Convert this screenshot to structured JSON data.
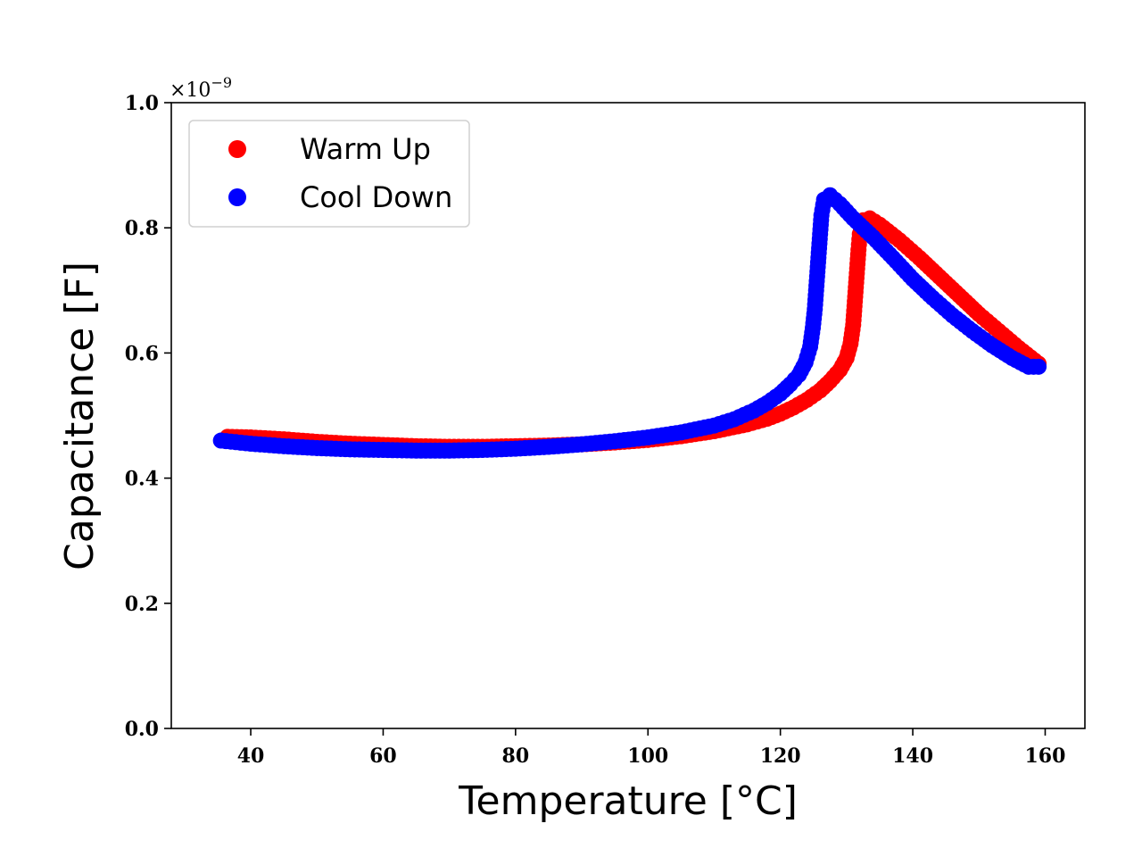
{
  "chart_data": {
    "type": "scatter",
    "title": "",
    "xlabel": "Temperature [°C]",
    "ylabel": "Capacitance [F]",
    "xlim": [
      28,
      166
    ],
    "ylim": [
      0.0,
      1.0
    ],
    "y_offset_label": {
      "base": "×10",
      "exponent": "−9"
    },
    "x_ticks": [
      40,
      60,
      80,
      100,
      120,
      140,
      160
    ],
    "y_ticks": [
      0.0,
      0.2,
      0.4,
      0.6,
      0.8,
      1.0
    ],
    "x_tick_labels": [
      "40",
      "60",
      "80",
      "100",
      "120",
      "140",
      "160"
    ],
    "y_tick_labels": [
      "0.0",
      "0.2",
      "0.4",
      "0.6",
      "0.8",
      "1.0"
    ],
    "grid": false,
    "legend_position": "top-left",
    "series": [
      {
        "name": "Warm Up",
        "color": "#ff0000",
        "points": [
          [
            36.5,
            0.466
          ],
          [
            40,
            0.465
          ],
          [
            45,
            0.462
          ],
          [
            50,
            0.458
          ],
          [
            55,
            0.455
          ],
          [
            60,
            0.453
          ],
          [
            65,
            0.451
          ],
          [
            70,
            0.45
          ],
          [
            75,
            0.45
          ],
          [
            80,
            0.451
          ],
          [
            85,
            0.452
          ],
          [
            90,
            0.454
          ],
          [
            95,
            0.457
          ],
          [
            100,
            0.461
          ],
          [
            105,
            0.467
          ],
          [
            110,
            0.475
          ],
          [
            115,
            0.486
          ],
          [
            118,
            0.495
          ],
          [
            120,
            0.503
          ],
          [
            122,
            0.513
          ],
          [
            124,
            0.525
          ],
          [
            126,
            0.54
          ],
          [
            127.5,
            0.555
          ],
          [
            129,
            0.573
          ],
          [
            130,
            0.592
          ],
          [
            130.6,
            0.615
          ],
          [
            131,
            0.645
          ],
          [
            131.2,
            0.675
          ],
          [
            131.4,
            0.705
          ],
          [
            131.6,
            0.735
          ],
          [
            131.8,
            0.765
          ],
          [
            132,
            0.79
          ],
          [
            132.5,
            0.812
          ],
          [
            133.5,
            0.815
          ],
          [
            135,
            0.805
          ],
          [
            138,
            0.78
          ],
          [
            141,
            0.752
          ],
          [
            144,
            0.722
          ],
          [
            147,
            0.692
          ],
          [
            150,
            0.662
          ],
          [
            153,
            0.635
          ],
          [
            156,
            0.608
          ],
          [
            159,
            0.583
          ]
        ]
      },
      {
        "name": "Cool Down",
        "color": "#0000ff",
        "points": [
          [
            35.5,
            0.46
          ],
          [
            40,
            0.455
          ],
          [
            45,
            0.451
          ],
          [
            50,
            0.448
          ],
          [
            55,
            0.446
          ],
          [
            60,
            0.445
          ],
          [
            65,
            0.444
          ],
          [
            70,
            0.444
          ],
          [
            75,
            0.445
          ],
          [
            80,
            0.447
          ],
          [
            85,
            0.45
          ],
          [
            90,
            0.454
          ],
          [
            95,
            0.459
          ],
          [
            100,
            0.465
          ],
          [
            105,
            0.473
          ],
          [
            110,
            0.484
          ],
          [
            113,
            0.494
          ],
          [
            116,
            0.508
          ],
          [
            118,
            0.52
          ],
          [
            120,
            0.535
          ],
          [
            121.5,
            0.55
          ],
          [
            122.8,
            0.565
          ],
          [
            123.8,
            0.585
          ],
          [
            124.5,
            0.61
          ],
          [
            124.9,
            0.64
          ],
          [
            125.2,
            0.67
          ],
          [
            125.4,
            0.7
          ],
          [
            125.6,
            0.73
          ],
          [
            125.8,
            0.76
          ],
          [
            126,
            0.79
          ],
          [
            126.2,
            0.82
          ],
          [
            126.6,
            0.845
          ],
          [
            127.5,
            0.852
          ],
          [
            129,
            0.838
          ],
          [
            131,
            0.815
          ],
          [
            134,
            0.785
          ],
          [
            137,
            0.752
          ],
          [
            140,
            0.718
          ],
          [
            143,
            0.688
          ],
          [
            146,
            0.66
          ],
          [
            149,
            0.635
          ],
          [
            152,
            0.612
          ],
          [
            155,
            0.592
          ],
          [
            157.5,
            0.578
          ],
          [
            159,
            0.578
          ]
        ]
      }
    ]
  }
}
